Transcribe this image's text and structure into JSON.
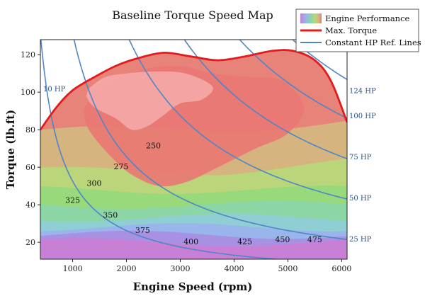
{
  "chart_data": {
    "type": "contour",
    "title": "Baseline Torque Speed Map",
    "xlabel": "Engine Speed (rpm)",
    "ylabel": "Torque (lb.ft)",
    "xlim": [
      400,
      6100
    ],
    "ylim": [
      11,
      128
    ],
    "x_ticks": [
      1000,
      2000,
      3000,
      4000,
      5000,
      6000
    ],
    "y_ticks": [
      20,
      40,
      60,
      80,
      100,
      120
    ],
    "grid": false,
    "legend_position": "top-right",
    "legend": [
      {
        "label": "Engine Performance",
        "kind": "gradient-patch"
      },
      {
        "label": "Max. Torque",
        "kind": "line",
        "color": "#e21c1c"
      },
      {
        "label": "Constant HP Ref. Lines",
        "kind": "line",
        "color": "#4f86c6"
      }
    ],
    "max_torque_curve": {
      "name": "Max. Torque",
      "x": [
        400,
        700,
        1000,
        1400,
        1800,
        2200,
        2700,
        3200,
        3700,
        4200,
        4700,
        5100,
        5500,
        5800,
        6100
      ],
      "y": [
        80,
        92,
        101,
        108,
        114,
        118,
        121,
        119,
        117,
        119,
        122,
        122,
        117,
        106,
        84
      ]
    },
    "constant_hp_lines": [
      {
        "hp": 10,
        "label": "10 HP"
      },
      {
        "hp": 25,
        "label": "25 HP"
      },
      {
        "hp": 50,
        "label": "50 HP"
      },
      {
        "hp": 75,
        "label": "75 HP"
      },
      {
        "hp": 100,
        "label": "100 HP"
      },
      {
        "hp": 124,
        "label": "124 HP"
      }
    ],
    "contour_labels": [
      {
        "value": "250",
        "x": 2500,
        "y": 70
      },
      {
        "value": "275",
        "x": 1900,
        "y": 59
      },
      {
        "value": "300",
        "x": 1400,
        "y": 50
      },
      {
        "value": "325",
        "x": 1000,
        "y": 41
      },
      {
        "value": "350",
        "x": 1700,
        "y": 33
      },
      {
        "value": "375",
        "x": 2300,
        "y": 25
      },
      {
        "value": "400",
        "x": 3200,
        "y": 19
      },
      {
        "value": "425",
        "x": 4200,
        "y": 19
      },
      {
        "value": "450",
        "x": 4900,
        "y": 20
      },
      {
        "value": "475",
        "x": 5500,
        "y": 20
      }
    ],
    "contour_bands": [
      {
        "color": "#c97fd6",
        "x": [
          400,
          6100
        ],
        "y_top": [
          20,
          20
        ]
      },
      {
        "color": "#a98fe2",
        "x": [
          400,
          6100
        ],
        "y_top": [
          24,
          24
        ]
      },
      {
        "color": "#9ab3ec",
        "x": [
          400,
          6100
        ],
        "y_top": [
          28,
          28
        ]
      },
      {
        "color": "#8fcdd6",
        "x": [
          400,
          6100
        ],
        "y_top": [
          33,
          33
        ]
      },
      {
        "color": "#8ad6a6",
        "x": [
          400,
          6100
        ],
        "y_top": [
          40,
          40
        ]
      },
      {
        "color": "#96d97c",
        "x": [
          400,
          6100
        ],
        "y_top": [
          48,
          48
        ]
      },
      {
        "color": "#b8d77a",
        "x": [
          400,
          6100
        ],
        "y_top": [
          58,
          58
        ]
      },
      {
        "color": "#d4b680",
        "x": [
          400,
          6100
        ],
        "y_top": [
          80,
          80
        ]
      }
    ],
    "colors": {
      "max_torque": "#e21c1c",
      "hp_lines": "#4f86c6",
      "hp_label": "#2a4f8a"
    }
  }
}
